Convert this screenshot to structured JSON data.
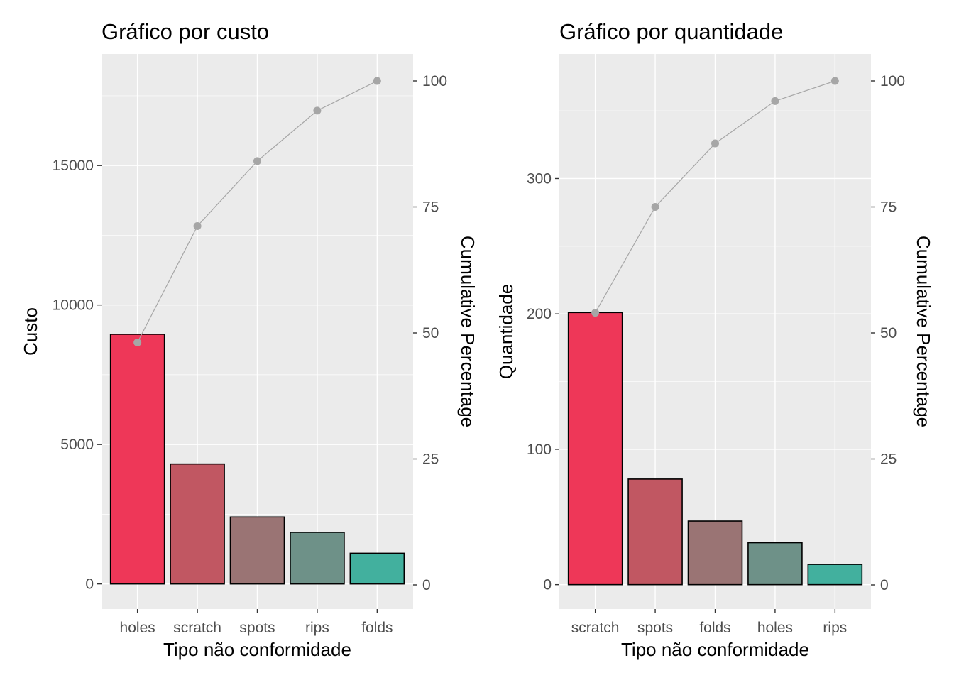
{
  "chart_data": [
    {
      "type": "bar",
      "title": "Gráfico por custo",
      "xlabel": "Tipo não conformidade",
      "ylabel": "Custo",
      "y2label": "Cumulative Percentage",
      "categories": [
        "holes",
        "scratch",
        "spots",
        "rips",
        "folds"
      ],
      "values": [
        8950,
        4300,
        2400,
        1850,
        1100
      ],
      "bar_colors": [
        "#EE3758",
        "#C15762",
        "#9A7474",
        "#6E9188",
        "#42B09E"
      ],
      "cumulative_percent": [
        48.1,
        71.2,
        84.1,
        94.1,
        100
      ],
      "ylim": [
        -900,
        19000
      ],
      "y_ticks": [
        0,
        5000,
        10000,
        15000
      ],
      "y2_ticks": [
        0,
        25,
        50,
        75,
        100
      ],
      "line_color": "#A6A6A6",
      "grid": true,
      "legend": "none"
    },
    {
      "type": "bar",
      "title": "Gráfico por quantidade",
      "xlabel": "Tipo não conformidade",
      "ylabel": "Quantidade",
      "y2label": "Cumulative Percentage",
      "categories": [
        "scratch",
        "spots",
        "folds",
        "holes",
        "rips"
      ],
      "values": [
        201,
        78,
        47,
        31,
        15
      ],
      "bar_colors": [
        "#EE3758",
        "#C15762",
        "#9A7474",
        "#6E9188",
        "#42B09E"
      ],
      "cumulative_percent": [
        54.0,
        75.0,
        87.6,
        96.0,
        100
      ],
      "ylim": [
        -18,
        392
      ],
      "y_ticks": [
        0,
        100,
        200,
        300
      ],
      "y2_ticks": [
        0,
        25,
        50,
        75,
        100
      ],
      "line_color": "#A6A6A6",
      "grid": true,
      "legend": "none"
    }
  ]
}
